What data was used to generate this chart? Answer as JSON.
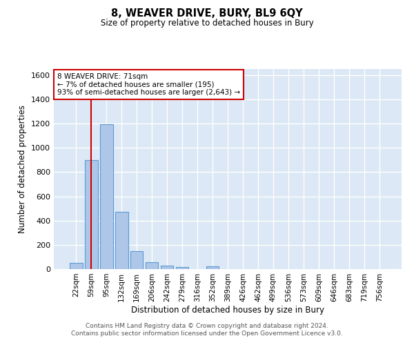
{
  "title": "8, WEAVER DRIVE, BURY, BL9 6QY",
  "subtitle": "Size of property relative to detached houses in Bury",
  "xlabel": "Distribution of detached houses by size in Bury",
  "ylabel": "Number of detached properties",
  "categories": [
    "22sqm",
    "59sqm",
    "95sqm",
    "132sqm",
    "169sqm",
    "206sqm",
    "242sqm",
    "279sqm",
    "316sqm",
    "352sqm",
    "389sqm",
    "426sqm",
    "462sqm",
    "499sqm",
    "536sqm",
    "573sqm",
    "609sqm",
    "646sqm",
    "683sqm",
    "719sqm",
    "756sqm"
  ],
  "values": [
    50,
    900,
    1195,
    470,
    150,
    58,
    30,
    18,
    0,
    20,
    0,
    0,
    0,
    0,
    0,
    0,
    0,
    0,
    0,
    0,
    0
  ],
  "bar_color": "#aec6e8",
  "bar_edge_color": "#5b9bd5",
  "vline_x": 1.0,
  "vline_color": "#cc0000",
  "annotation_text": "8 WEAVER DRIVE: 71sqm\n← 7% of detached houses are smaller (195)\n93% of semi-detached houses are larger (2,643) →",
  "annotation_box_color": "#ffffff",
  "annotation_box_edge_color": "#cc0000",
  "ylim": [
    0,
    1650
  ],
  "yticks": [
    0,
    200,
    400,
    600,
    800,
    1000,
    1200,
    1400,
    1600
  ],
  "bg_color": "#dce8f5",
  "grid_color": "#ffffff",
  "footer": "Contains HM Land Registry data © Crown copyright and database right 2024.\nContains public sector information licensed under the Open Government Licence v3.0."
}
